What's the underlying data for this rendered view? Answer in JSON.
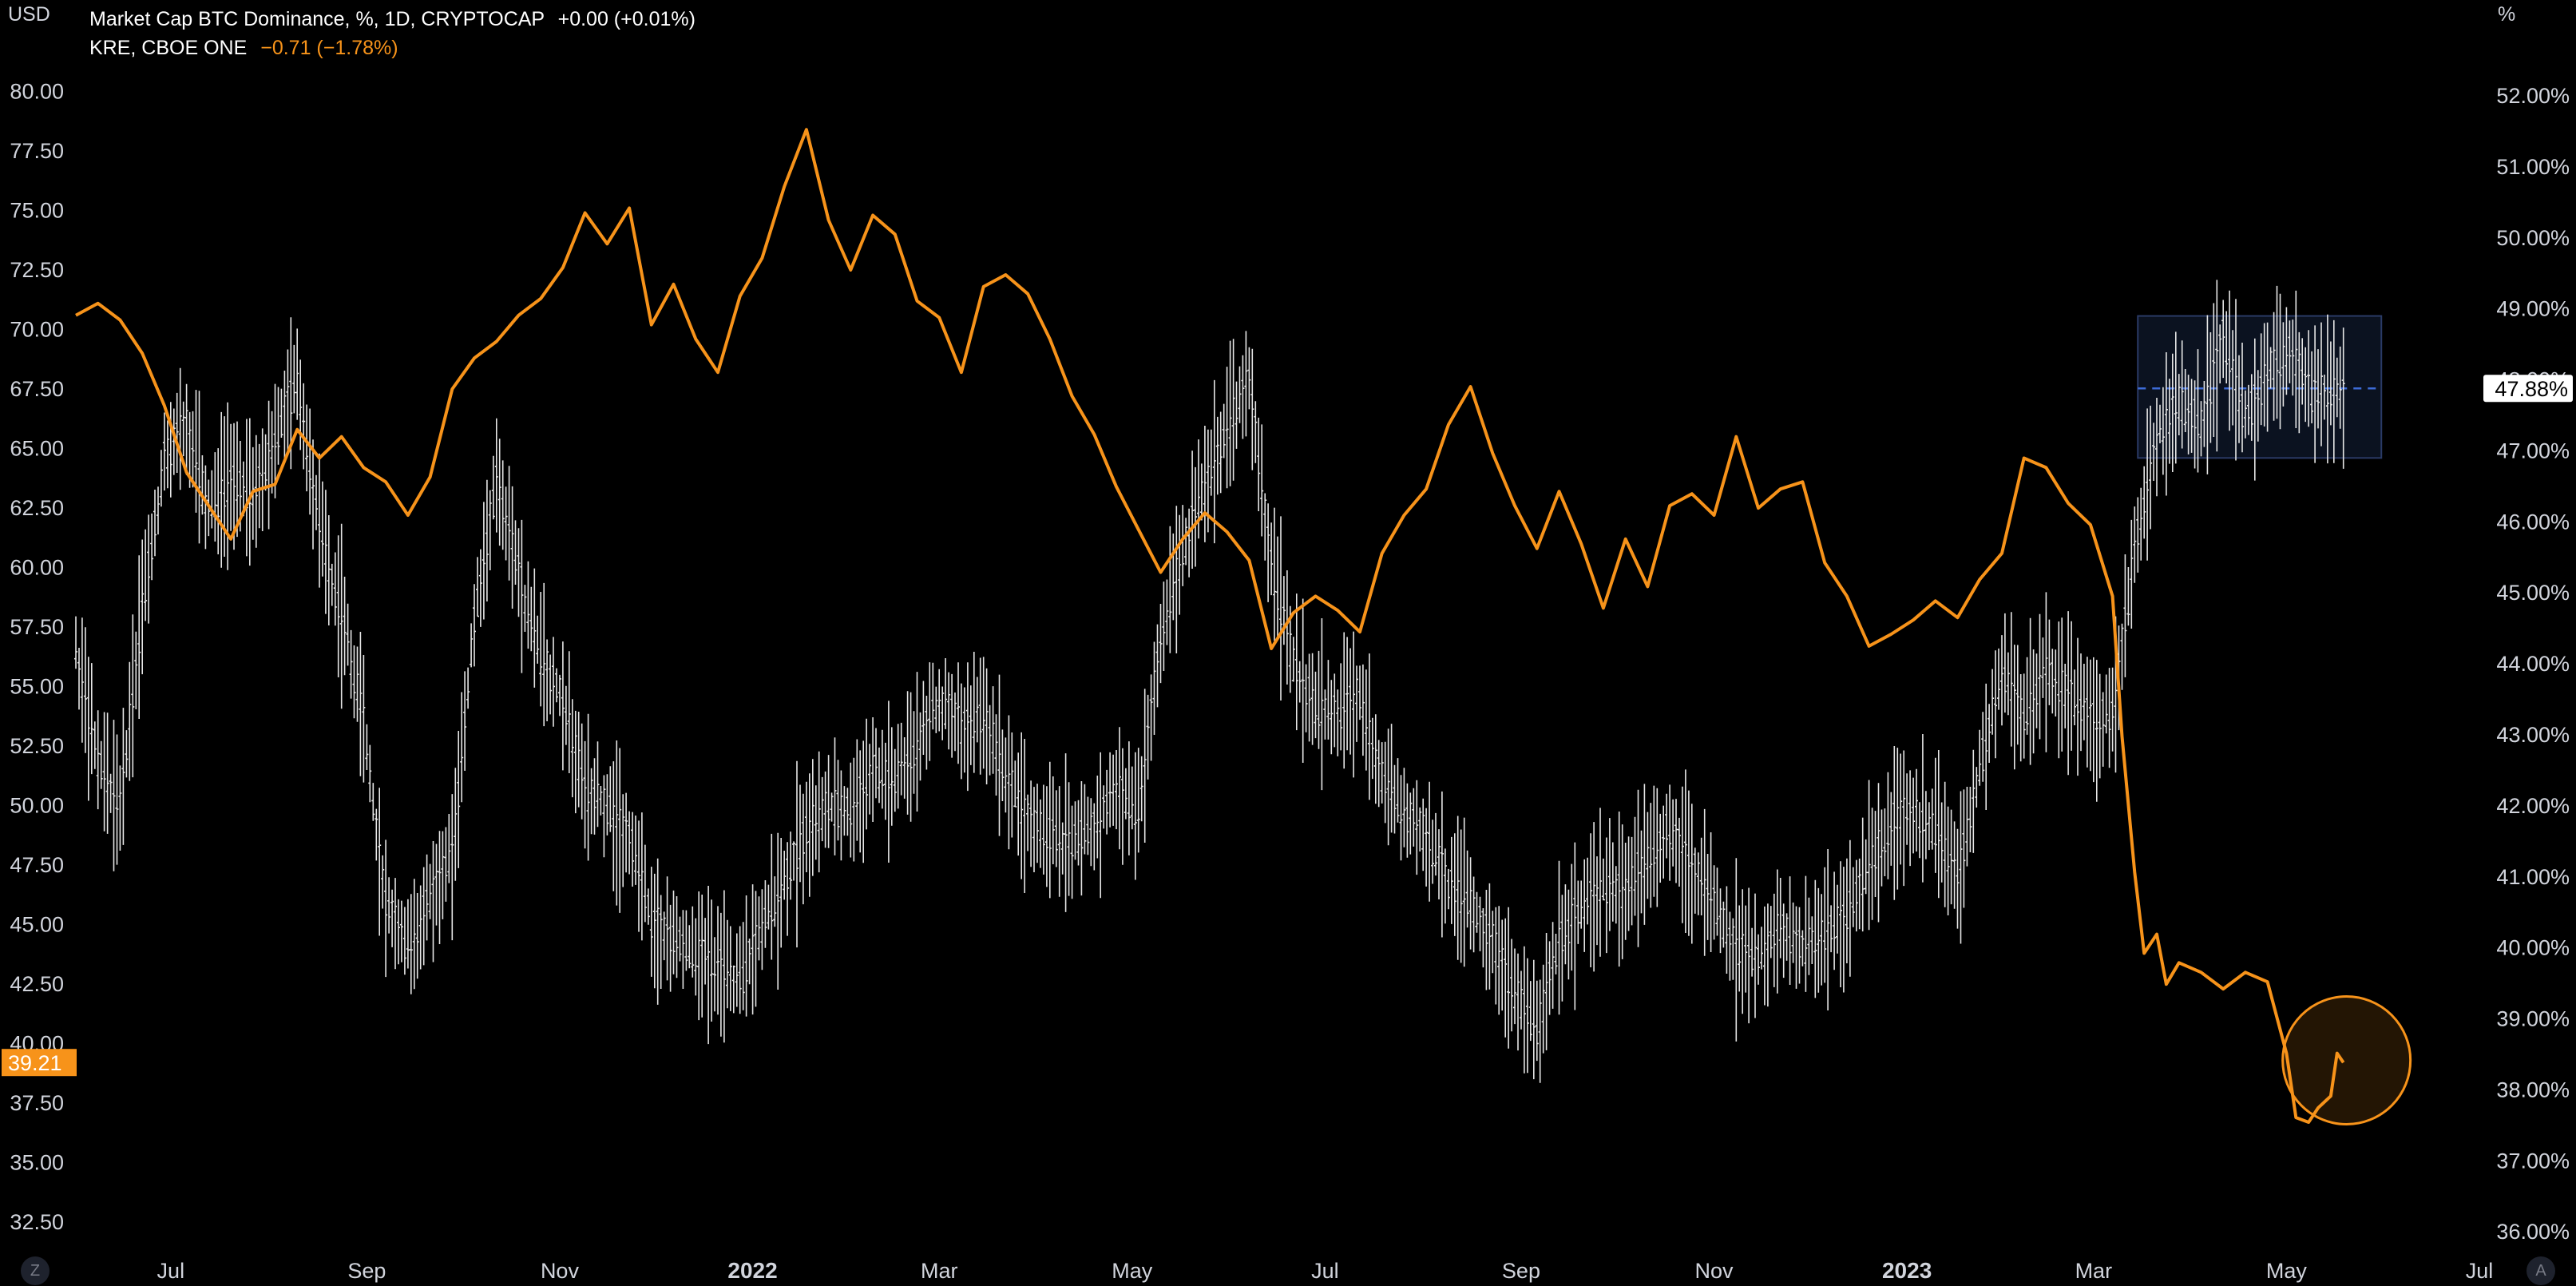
{
  "units": {
    "left": "USD",
    "right": "%"
  },
  "legend": {
    "series1_name": "Market Cap BTC Dominance, %, 1D, CRYPTOCAP",
    "series1_change": "+0.00 (+0.01%)",
    "series2_name": "KRE, CBOE ONE",
    "series2_change": "−0.71 (−1.78%)"
  },
  "buttons": {
    "left_corner": "Z",
    "right_corner": "A"
  },
  "colors": {
    "background": "#000000",
    "kre": "#f7931a",
    "btc": "#e6e6e6",
    "box_fill": "#0b1220",
    "box_border": "#2a3a66",
    "dashed": "#3d6bd6"
  },
  "chart_data": {
    "type": "line",
    "x_range": [
      "2021-06-01",
      "2023-07-01"
    ],
    "x_ticks": [
      "Jul",
      "Sep",
      "Nov",
      "2022",
      "Mar",
      "May",
      "Jul",
      "Sep",
      "Nov",
      "2023",
      "Mar",
      "May",
      "Jul"
    ],
    "x_tick_dates": [
      "2021-07-01",
      "2021-09-01",
      "2021-11-01",
      "2022-01-01",
      "2022-03-01",
      "2022-05-01",
      "2022-07-01",
      "2022-09-01",
      "2022-11-01",
      "2023-01-01",
      "2023-03-01",
      "2023-05-01",
      "2023-07-01"
    ],
    "bold_ticks": [
      "2022",
      "2023"
    ],
    "left_axis": {
      "label": "USD",
      "range": [
        31.5,
        82.5
      ],
      "ticks": [
        "32.50",
        "35.00",
        "37.50",
        "40.00",
        "42.50",
        "45.00",
        "47.50",
        "50.00",
        "52.50",
        "55.00",
        "57.50",
        "60.00",
        "62.50",
        "65.00",
        "67.50",
        "70.00",
        "72.50",
        "75.00",
        "77.50",
        "80.00"
      ]
    },
    "right_axis": {
      "label": "%",
      "range": [
        35.8,
        52.9
      ],
      "ticks": [
        "36.00%",
        "37.00%",
        "38.00%",
        "39.00%",
        "40.00%",
        "41.00%",
        "42.00%",
        "43.00%",
        "44.00%",
        "45.00%",
        "46.00%",
        "47.00%",
        "48.00%",
        "49.00%",
        "50.00%",
        "51.00%",
        "52.00%"
      ]
    },
    "series": [
      {
        "name": "KRE, CBOE ONE",
        "axis": "left",
        "style": "line",
        "last_value": "39.21",
        "points": [
          [
            "2021-06-01",
            70.6
          ],
          [
            "2021-06-08",
            71.1
          ],
          [
            "2021-06-15",
            70.4
          ],
          [
            "2021-06-22",
            69.0
          ],
          [
            "2021-06-29",
            66.8
          ],
          [
            "2021-07-06",
            64.0
          ],
          [
            "2021-07-13",
            62.6
          ],
          [
            "2021-07-20",
            61.2
          ],
          [
            "2021-07-27",
            63.2
          ],
          [
            "2021-08-03",
            63.5
          ],
          [
            "2021-08-10",
            65.8
          ],
          [
            "2021-08-17",
            64.6
          ],
          [
            "2021-08-24",
            65.5
          ],
          [
            "2021-08-31",
            64.2
          ],
          [
            "2021-09-07",
            63.6
          ],
          [
            "2021-09-14",
            62.2
          ],
          [
            "2021-09-21",
            63.8
          ],
          [
            "2021-09-28",
            67.5
          ],
          [
            "2021-10-05",
            68.8
          ],
          [
            "2021-10-12",
            69.5
          ],
          [
            "2021-10-19",
            70.6
          ],
          [
            "2021-10-26",
            71.3
          ],
          [
            "2021-11-02",
            72.6
          ],
          [
            "2021-11-09",
            74.9
          ],
          [
            "2021-11-16",
            73.6
          ],
          [
            "2021-11-23",
            75.1
          ],
          [
            "2021-11-30",
            70.2
          ],
          [
            "2021-12-07",
            71.9
          ],
          [
            "2021-12-14",
            69.6
          ],
          [
            "2021-12-21",
            68.2
          ],
          [
            "2021-12-28",
            71.4
          ],
          [
            "2022-01-04",
            73.0
          ],
          [
            "2022-01-11",
            76.0
          ],
          [
            "2022-01-18",
            78.4
          ],
          [
            "2022-01-25",
            74.6
          ],
          [
            "2022-02-01",
            72.5
          ],
          [
            "2022-02-08",
            74.8
          ],
          [
            "2022-02-15",
            74.0
          ],
          [
            "2022-02-22",
            71.2
          ],
          [
            "2022-03-01",
            70.5
          ],
          [
            "2022-03-08",
            68.2
          ],
          [
            "2022-03-15",
            71.8
          ],
          [
            "2022-03-22",
            72.3
          ],
          [
            "2022-03-29",
            71.5
          ],
          [
            "2022-04-05",
            69.6
          ],
          [
            "2022-04-12",
            67.2
          ],
          [
            "2022-04-19",
            65.6
          ],
          [
            "2022-04-26",
            63.4
          ],
          [
            "2022-05-03",
            61.6
          ],
          [
            "2022-05-10",
            59.8
          ],
          [
            "2022-05-17",
            61.2
          ],
          [
            "2022-05-24",
            62.3
          ],
          [
            "2022-05-31",
            61.5
          ],
          [
            "2022-06-07",
            60.3
          ],
          [
            "2022-06-14",
            56.6
          ],
          [
            "2022-06-21",
            58.1
          ],
          [
            "2022-06-28",
            58.8
          ],
          [
            "2022-07-05",
            58.2
          ],
          [
            "2022-07-12",
            57.3
          ],
          [
            "2022-07-19",
            60.6
          ],
          [
            "2022-07-26",
            62.2
          ],
          [
            "2022-08-02",
            63.3
          ],
          [
            "2022-08-09",
            66.0
          ],
          [
            "2022-08-16",
            67.6
          ],
          [
            "2022-08-23",
            64.8
          ],
          [
            "2022-08-30",
            62.6
          ],
          [
            "2022-09-06",
            60.8
          ],
          [
            "2022-09-13",
            63.2
          ],
          [
            "2022-09-20",
            61.0
          ],
          [
            "2022-09-27",
            58.3
          ],
          [
            "2022-10-04",
            61.2
          ],
          [
            "2022-10-11",
            59.2
          ],
          [
            "2022-10-18",
            62.6
          ],
          [
            "2022-10-25",
            63.1
          ],
          [
            "2022-11-01",
            62.2
          ],
          [
            "2022-11-08",
            65.5
          ],
          [
            "2022-11-15",
            62.5
          ],
          [
            "2022-11-22",
            63.3
          ],
          [
            "2022-11-29",
            63.6
          ],
          [
            "2022-12-06",
            60.2
          ],
          [
            "2022-12-13",
            58.8
          ],
          [
            "2022-12-20",
            56.7
          ],
          [
            "2022-12-27",
            57.2
          ],
          [
            "2023-01-03",
            57.8
          ],
          [
            "2023-01-10",
            58.6
          ],
          [
            "2023-01-17",
            57.9
          ],
          [
            "2023-01-24",
            59.5
          ],
          [
            "2023-01-31",
            60.6
          ],
          [
            "2023-02-07",
            64.6
          ],
          [
            "2023-02-14",
            64.2
          ],
          [
            "2023-02-21",
            62.7
          ],
          [
            "2023-02-28",
            61.8
          ],
          [
            "2023-03-07",
            58.8
          ],
          [
            "2023-03-10",
            52.9
          ],
          [
            "2023-03-14",
            47.2
          ],
          [
            "2023-03-17",
            43.8
          ],
          [
            "2023-03-21",
            44.6
          ],
          [
            "2023-03-24",
            42.5
          ],
          [
            "2023-03-28",
            43.4
          ],
          [
            "2023-04-04",
            43.0
          ],
          [
            "2023-04-11",
            42.3
          ],
          [
            "2023-04-18",
            43.0
          ],
          [
            "2023-04-25",
            42.6
          ],
          [
            "2023-05-01",
            39.6
          ],
          [
            "2023-05-04",
            36.9
          ],
          [
            "2023-05-08",
            36.7
          ],
          [
            "2023-05-11",
            37.3
          ],
          [
            "2023-05-15",
            37.8
          ],
          [
            "2023-05-17",
            39.6
          ],
          [
            "2023-05-19",
            39.21
          ]
        ]
      },
      {
        "name": "Market Cap BTC Dominance, %, 1D, CRYPTOCAP",
        "axis": "right",
        "style": "bars",
        "last_value": "47.88%",
        "points": [
          [
            "2021-06-01",
            44.2
          ],
          [
            "2021-06-08",
            42.6
          ],
          [
            "2021-06-15",
            42.0
          ],
          [
            "2021-06-22",
            44.8
          ],
          [
            "2021-06-29",
            46.9
          ],
          [
            "2021-07-06",
            47.4
          ],
          [
            "2021-07-13",
            46.1
          ],
          [
            "2021-07-20",
            46.6
          ],
          [
            "2021-07-27",
            46.3
          ],
          [
            "2021-08-03",
            47.2
          ],
          [
            "2021-08-10",
            48.0
          ],
          [
            "2021-08-17",
            45.9
          ],
          [
            "2021-08-24",
            44.7
          ],
          [
            "2021-08-31",
            43.2
          ],
          [
            "2021-09-07",
            40.6
          ],
          [
            "2021-09-14",
            40.0
          ],
          [
            "2021-09-21",
            40.7
          ],
          [
            "2021-09-28",
            41.3
          ],
          [
            "2021-10-05",
            44.6
          ],
          [
            "2021-10-12",
            46.6
          ],
          [
            "2021-10-19",
            45.3
          ],
          [
            "2021-10-26",
            44.1
          ],
          [
            "2021-11-02",
            43.5
          ],
          [
            "2021-11-09",
            42.2
          ],
          [
            "2021-11-16",
            42.0
          ],
          [
            "2021-11-23",
            41.6
          ],
          [
            "2021-11-30",
            40.4
          ],
          [
            "2021-12-07",
            40.1
          ],
          [
            "2021-12-14",
            39.9
          ],
          [
            "2021-12-21",
            39.8
          ],
          [
            "2021-12-28",
            39.5
          ],
          [
            "2022-01-04",
            40.3
          ],
          [
            "2022-01-11",
            40.9
          ],
          [
            "2022-01-18",
            41.7
          ],
          [
            "2022-01-25",
            42.0
          ],
          [
            "2022-02-01",
            41.9
          ],
          [
            "2022-02-08",
            42.5
          ],
          [
            "2022-02-15",
            42.3
          ],
          [
            "2022-02-22",
            42.9
          ],
          [
            "2022-03-01",
            43.5
          ],
          [
            "2022-03-08",
            43.1
          ],
          [
            "2022-03-15",
            43.3
          ],
          [
            "2022-03-22",
            42.5
          ],
          [
            "2022-03-29",
            41.8
          ],
          [
            "2022-04-05",
            41.6
          ],
          [
            "2022-04-12",
            41.5
          ],
          [
            "2022-04-19",
            41.7
          ],
          [
            "2022-04-26",
            42.3
          ],
          [
            "2022-05-03",
            41.9
          ],
          [
            "2022-05-10",
            44.4
          ],
          [
            "2022-05-17",
            45.6
          ],
          [
            "2022-05-24",
            46.5
          ],
          [
            "2022-05-31",
            47.3
          ],
          [
            "2022-06-07",
            48.0
          ],
          [
            "2022-06-14",
            45.4
          ],
          [
            "2022-06-21",
            44.0
          ],
          [
            "2022-06-28",
            43.4
          ],
          [
            "2022-07-05",
            43.3
          ],
          [
            "2022-07-12",
            43.6
          ],
          [
            "2022-07-19",
            42.4
          ],
          [
            "2022-07-26",
            41.9
          ],
          [
            "2022-08-02",
            41.6
          ],
          [
            "2022-08-09",
            40.9
          ],
          [
            "2022-08-16",
            40.6
          ],
          [
            "2022-08-23",
            40.1
          ],
          [
            "2022-08-30",
            39.4
          ],
          [
            "2022-09-06",
            38.8
          ],
          [
            "2022-09-13",
            40.1
          ],
          [
            "2022-09-20",
            40.6
          ],
          [
            "2022-09-27",
            40.9
          ],
          [
            "2022-10-04",
            40.8
          ],
          [
            "2022-10-11",
            41.3
          ],
          [
            "2022-10-18",
            41.7
          ],
          [
            "2022-10-25",
            41.2
          ],
          [
            "2022-11-01",
            40.6
          ],
          [
            "2022-11-08",
            40.0
          ],
          [
            "2022-11-15",
            39.8
          ],
          [
            "2022-11-22",
            40.3
          ],
          [
            "2022-11-29",
            40.0
          ],
          [
            "2022-12-06",
            40.2
          ],
          [
            "2022-12-13",
            40.5
          ],
          [
            "2022-12-20",
            41.1
          ],
          [
            "2022-12-27",
            41.8
          ],
          [
            "2023-01-03",
            41.9
          ],
          [
            "2023-01-10",
            41.7
          ],
          [
            "2023-01-17",
            41.0
          ],
          [
            "2023-01-24",
            42.5
          ],
          [
            "2023-01-31",
            43.9
          ],
          [
            "2023-02-07",
            43.3
          ],
          [
            "2023-02-14",
            43.9
          ],
          [
            "2023-02-21",
            43.6
          ],
          [
            "2023-02-28",
            43.2
          ],
          [
            "2023-03-07",
            43.3
          ],
          [
            "2023-03-14",
            45.6
          ],
          [
            "2023-03-21",
            47.2
          ],
          [
            "2023-03-28",
            47.7
          ],
          [
            "2023-04-04",
            47.4
          ],
          [
            "2023-04-11",
            48.6
          ],
          [
            "2023-04-18",
            47.4
          ],
          [
            "2023-04-25",
            48.1
          ],
          [
            "2023-05-02",
            48.4
          ],
          [
            "2023-05-09",
            47.8
          ],
          [
            "2023-05-16",
            47.9
          ],
          [
            "2023-05-19",
            47.88
          ]
        ]
      }
    ],
    "annotations": [
      {
        "type": "box",
        "from": "2023-03-15",
        "to": "2023-05-31",
        "y_top": 48.9,
        "y_bottom": 46.9,
        "axis": "right"
      },
      {
        "type": "dashed_line",
        "y": 47.88,
        "axis": "right",
        "label": "47.88%"
      },
      {
        "type": "circle",
        "center_date": "2023-05-20",
        "center_value": 39.3,
        "axis": "left"
      }
    ]
  }
}
